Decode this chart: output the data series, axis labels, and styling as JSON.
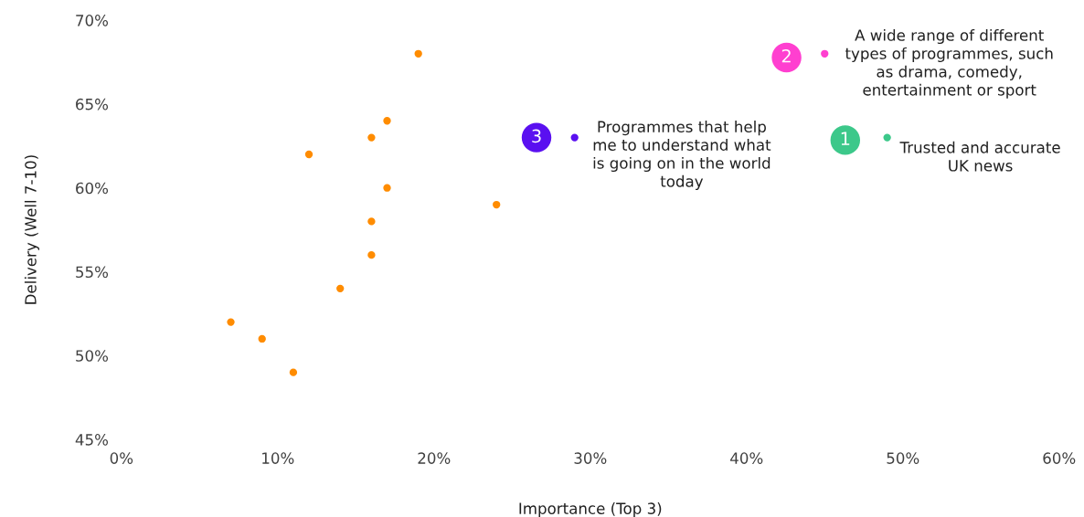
{
  "chart_data": {
    "type": "scatter",
    "xlabel": "Importance (Top 3)",
    "ylabel": "Delivery (Well 7-10)",
    "series": [
      {
        "color": "#ff8c00",
        "x": [
          19,
          17,
          16,
          12,
          17,
          24,
          16,
          16,
          14,
          7,
          9,
          11
        ],
        "values": [
          68,
          64,
          63,
          62,
          60,
          59,
          58,
          56,
          54,
          52,
          51,
          49
        ]
      },
      {
        "color": "#5a10f0",
        "x": [
          29
        ],
        "values": [
          63
        ]
      },
      {
        "color": "#ff3fd0",
        "x": [
          45
        ],
        "values": [
          68
        ]
      },
      {
        "color": "#3cc88a",
        "x": [
          49
        ],
        "values": [
          63
        ]
      }
    ],
    "annotations": [
      {
        "text": "Programmes that help\nme to understand what\nis going on in the world\ntoday",
        "x": 29,
        "y": 63
      },
      {
        "text": "3",
        "x": 29,
        "y": 63
      },
      {
        "text": "A wide range of different\ntypes of programmes, such\nas drama, comedy,\nentertainment or sport",
        "x": 45,
        "y": 68
      },
      {
        "text": "2",
        "x": 45,
        "y": 68
      },
      {
        "text": "Trusted and accurate\nUK news",
        "x": 49,
        "y": 63
      },
      {
        "text": "1",
        "x": 49,
        "y": 63
      }
    ],
    "xlim": [
      0,
      60
    ],
    "ylim": [
      45,
      70
    ],
    "xticks": [
      {
        "value": 0,
        "label": "0%"
      },
      {
        "value": 10,
        "label": "10%"
      },
      {
        "value": 20,
        "label": "20%"
      },
      {
        "value": 30,
        "label": "30%"
      },
      {
        "value": 40,
        "label": "40%"
      },
      {
        "value": 50,
        "label": "50%"
      },
      {
        "value": 60,
        "label": "60%"
      }
    ],
    "yticks": [
      {
        "value": 45,
        "label": "45%"
      },
      {
        "value": 50,
        "label": "50%"
      },
      {
        "value": 55,
        "label": "55%"
      },
      {
        "value": 60,
        "label": "60%"
      },
      {
        "value": 65,
        "label": "65%"
      },
      {
        "value": 70,
        "label": "70%"
      }
    ],
    "marker": "circle",
    "grid": false,
    "legend": false
  }
}
